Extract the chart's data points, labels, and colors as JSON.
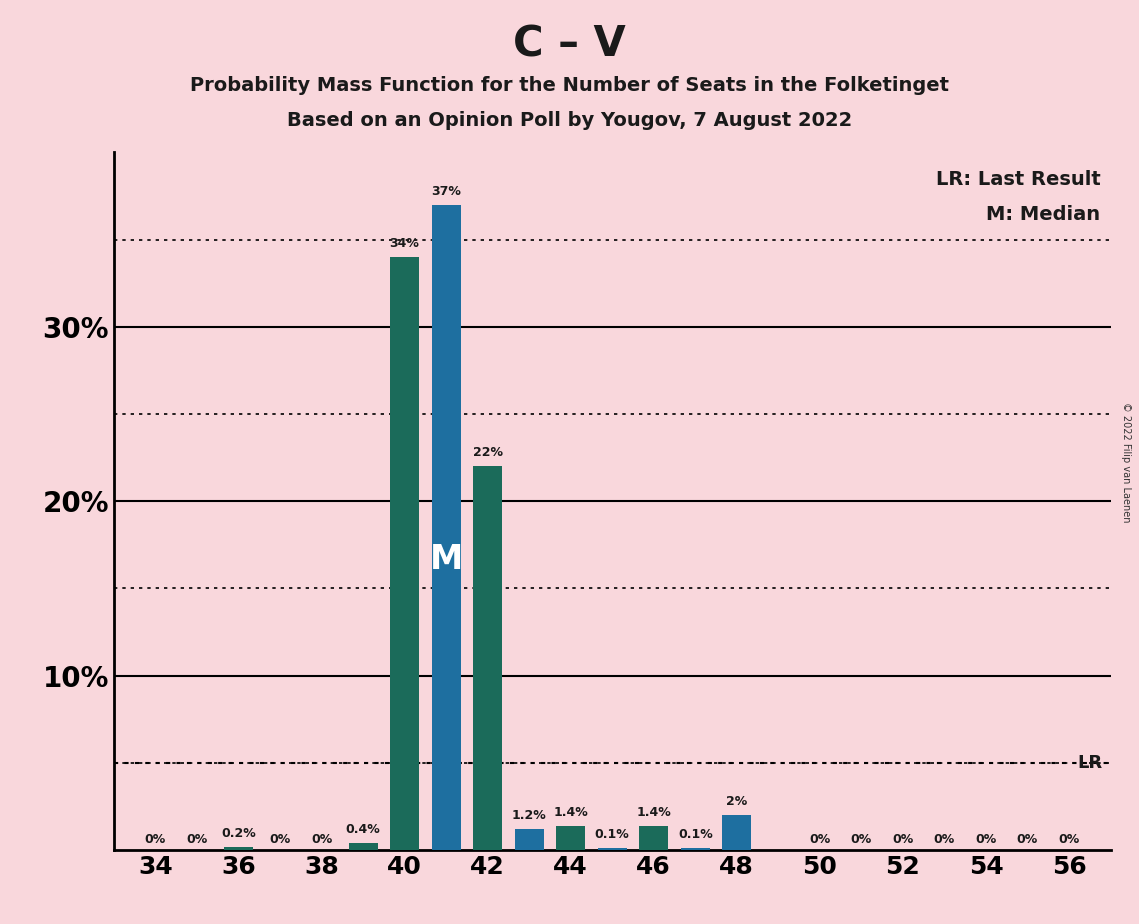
{
  "title_main": "C – V",
  "title_sub1": "Probability Mass Function for the Number of Seats in the Folketinget",
  "title_sub2": "Based on an Opinion Poll by Yougov, 7 August 2022",
  "background_color": "#F9D7DC",
  "bar_color_green": "#1B6B5A",
  "bar_color_blue": "#1E6FA0",
  "lr_line_y": 5.0,
  "median_label": "M",
  "copyright_text": "© 2022 Filip van Laenen",
  "legend_lr": "LR: Last Result",
  "legend_m": "M: Median",
  "seats": [
    34,
    35,
    36,
    37,
    38,
    39,
    40,
    41,
    42,
    43,
    44,
    45,
    46,
    47,
    48,
    49,
    50,
    51,
    52,
    53,
    54,
    55,
    56
  ],
  "green_values": [
    0.0,
    0.0,
    0.2,
    0.0,
    0.0,
    0.4,
    34.0,
    0.0,
    22.0,
    0.0,
    1.4,
    0.0,
    1.4,
    0.0,
    0.0,
    0.0,
    0.0,
    0.0,
    0.0,
    0.0,
    0.0,
    0.0,
    0.0
  ],
  "blue_values": [
    0.0,
    0.0,
    0.0,
    0.0,
    0.0,
    0.0,
    0.0,
    37.0,
    0.0,
    1.2,
    0.0,
    0.1,
    0.0,
    0.1,
    2.0,
    0.0,
    0.0,
    0.0,
    0.0,
    0.0,
    0.0,
    0.0,
    0.0
  ],
  "bar_labels_green": [
    "0%",
    "0%",
    "0.2%",
    "0%",
    "0%",
    "0.4%",
    "34%",
    "",
    "22%",
    "",
    "1.4%",
    "",
    "1.4%",
    "",
    "",
    "",
    "0%",
    "0%",
    "0%",
    "0%",
    "0%",
    "0%",
    "0%"
  ],
  "bar_labels_blue": [
    "",
    "",
    "",
    "",
    "",
    "",
    "",
    "37%",
    "",
    "1.2%",
    "",
    "0.1%",
    "",
    "0.1%",
    "2%",
    "",
    "",
    "0%",
    "",
    "",
    "",
    "",
    ""
  ],
  "median_blue_seat": 41,
  "xtick_positions": [
    34,
    36,
    38,
    40,
    42,
    44,
    46,
    48,
    50,
    52,
    54,
    56
  ],
  "ylim": [
    0,
    40
  ],
  "yticks": [
    0,
    10,
    20,
    30,
    40
  ],
  "ytick_labels": [
    "",
    "10%",
    "20%",
    "30%",
    ""
  ],
  "solid_grid_lines": [
    10,
    20,
    30
  ],
  "dotted_grid_lines": [
    5,
    15,
    25,
    35
  ],
  "bar_width": 0.7
}
